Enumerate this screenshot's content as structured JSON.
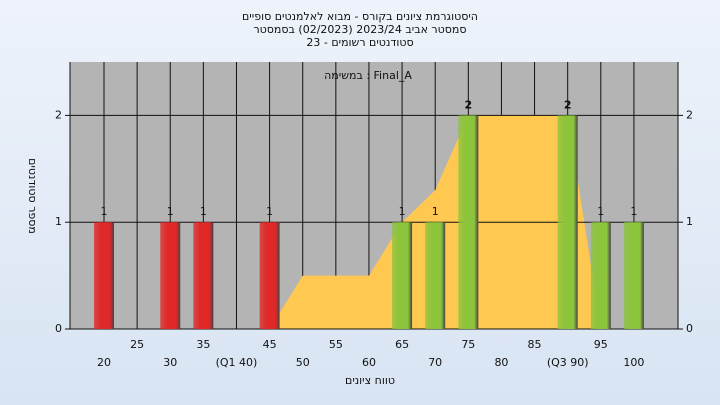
{
  "chart_data": {
    "type": "bar",
    "title": [
      "היסטוגרמת ציונים בקורס - מבוא לאלמנטים סופיים",
      "סמסטר אביב 2023/24  (02/2023)  בסמסטר",
      "סטודנטים רשומים - 23"
    ],
    "annotation": "Final_A : במשימה",
    "xlabel": "טווח ציונים",
    "ylabel": "מספר סטודנטים",
    "categories": [
      "20",
      "25",
      "30",
      "35",
      "(Q1 40)",
      "45",
      "50",
      "55",
      "60",
      "65",
      "70",
      "75",
      "80",
      "85",
      "(Q3 90)",
      "95",
      "100"
    ],
    "values": [
      1,
      0,
      1,
      1,
      0,
      1,
      0,
      0,
      0,
      1,
      1,
      2,
      0,
      0,
      2,
      1,
      1
    ],
    "colors": [
      "#e02828",
      "#e02828",
      "#e02828",
      "#e02828",
      "#e02828",
      "#e02828",
      "#e02828",
      "#e02828",
      "#e02828",
      "#8cc43c",
      "#8cc43c",
      "#8cc43c",
      "#8cc43c",
      "#8cc43c",
      "#8cc43c",
      "#8cc43c",
      "#8cc43c"
    ],
    "area": {
      "color": "#ffc850",
      "values": [
        null,
        null,
        null,
        null,
        null,
        0,
        0.5,
        0.5,
        0.5,
        1,
        1.3,
        2,
        2,
        2,
        2,
        0,
        null
      ]
    },
    "ylim": [
      0,
      2.5
    ],
    "yticks": [
      0,
      1,
      2
    ],
    "grid": true
  }
}
